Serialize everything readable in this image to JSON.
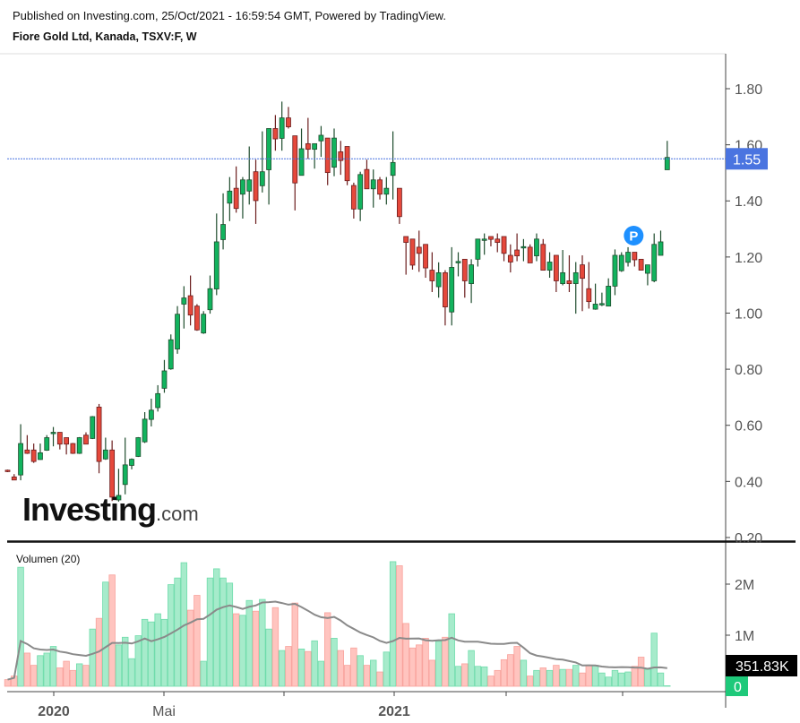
{
  "header": {
    "published": "Published on Investing.com, 25/Oct/2021 - 16:59:54 GMT, Powered by TradingView.",
    "instrument": "Fiore Gold Ltd, Kanada, TSXV:F, W"
  },
  "logo": {
    "brand": "Investing",
    "suffix": ".com"
  },
  "marker": {
    "label": "P",
    "color": "#1e90ff"
  },
  "colors": {
    "up": "#12b35e",
    "up_border": "#1f4d2e",
    "down": "#e5483b",
    "down_border": "#6b1d1d",
    "vol_up": "#a6ebcb",
    "vol_up_border": "#6fdcab",
    "vol_down": "#ffc4bf",
    "vol_down_border": "#f8a29c",
    "last_price": "#4a74e0",
    "vol_ma": "#8a8a8a"
  },
  "chart_data": [
    {
      "type": "candlestick",
      "title": "Fiore Gold Ltd, Kanada, TSXV:F, W",
      "ylim": [
        0.2,
        1.9
      ],
      "y_ticks": [
        "1.80",
        "1.60",
        "1.40",
        "1.20",
        "1.00",
        "0.80",
        "0.60",
        "0.40",
        "0.20"
      ],
      "y_tick_values": [
        1.8,
        1.6,
        1.4,
        1.2,
        1.0,
        0.8,
        0.6,
        0.4,
        0.2
      ],
      "x_ticks": [
        {
          "label": "2020",
          "bold": true
        },
        {
          "label": "Mai",
          "bold": false
        },
        {
          "label": "",
          "bold": false
        },
        {
          "label": "2021",
          "bold": true
        },
        {
          "label": "",
          "bold": false
        },
        {
          "label": "",
          "bold": false
        }
      ],
      "last_price": 1.55,
      "last_price_label": "1.55",
      "ohlc_columns": [
        "open",
        "high",
        "low",
        "close"
      ],
      "ohlc": [
        [
          0.44,
          0.442,
          0.433,
          0.435
        ],
        [
          0.416,
          0.426,
          0.405,
          0.405
        ],
        [
          0.423,
          0.604,
          0.404,
          0.535
        ],
        [
          0.512,
          0.565,
          0.498,
          0.5
        ],
        [
          0.512,
          0.535,
          0.466,
          0.471
        ],
        [
          0.478,
          0.535,
          0.477,
          0.502
        ],
        [
          0.511,
          0.565,
          0.509,
          0.556
        ],
        [
          0.573,
          0.594,
          0.525,
          0.575
        ],
        [
          0.575,
          0.575,
          0.514,
          0.533
        ],
        [
          0.556,
          0.556,
          0.496,
          0.533
        ],
        [
          0.535,
          0.537,
          0.498,
          0.5
        ],
        [
          0.5,
          0.558,
          0.498,
          0.556
        ],
        [
          0.565,
          0.575,
          0.533,
          0.533
        ],
        [
          0.553,
          0.633,
          0.551,
          0.631
        ],
        [
          0.665,
          0.676,
          0.429,
          0.471
        ],
        [
          0.48,
          0.556,
          0.477,
          0.512
        ],
        [
          0.512,
          0.546,
          0.33,
          0.344
        ],
        [
          0.334,
          0.445,
          0.328,
          0.35
        ],
        [
          0.389,
          0.556,
          0.354,
          0.459
        ],
        [
          0.457,
          0.482,
          0.443,
          0.479
        ],
        [
          0.489,
          0.558,
          0.487,
          0.556
        ],
        [
          0.541,
          0.647,
          0.537,
          0.622
        ],
        [
          0.621,
          0.695,
          0.596,
          0.654
        ],
        [
          0.663,
          0.743,
          0.649,
          0.713
        ],
        [
          0.732,
          0.833,
          0.716,
          0.794
        ],
        [
          0.801,
          0.924,
          0.798,
          0.905
        ],
        [
          0.872,
          1.025,
          0.855,
          0.996
        ],
        [
          1.032,
          1.096,
          0.945,
          1.054
        ],
        [
          1.062,
          1.134,
          0.956,
          0.993
        ],
        [
          1.025,
          1.032,
          0.937,
          0.94
        ],
        [
          0.929,
          1.007,
          0.926,
          0.996
        ],
        [
          1.012,
          1.134,
          0.998,
          1.087
        ],
        [
          1.086,
          1.355,
          1.064,
          1.254
        ],
        [
          1.262,
          1.427,
          1.227,
          1.316
        ],
        [
          1.392,
          1.485,
          1.328,
          1.435
        ],
        [
          1.445,
          1.523,
          1.358,
          1.373
        ],
        [
          1.424,
          1.485,
          1.337,
          1.475
        ],
        [
          1.435,
          1.594,
          1.387,
          1.475
        ],
        [
          1.504,
          1.547,
          1.318,
          1.401
        ],
        [
          1.454,
          1.648,
          1.43,
          1.504
        ],
        [
          1.511,
          1.658,
          1.387,
          1.658
        ],
        [
          1.658,
          1.706,
          1.579,
          1.621
        ],
        [
          1.623,
          1.754,
          1.579,
          1.696
        ],
        [
          1.696,
          1.735,
          1.658,
          1.664
        ],
        [
          1.632,
          1.632,
          1.366,
          1.464
        ],
        [
          1.491,
          1.658,
          1.491,
          1.586
        ],
        [
          1.604,
          1.696,
          1.55,
          1.584
        ],
        [
          1.584,
          1.604,
          1.515,
          1.604
        ],
        [
          1.614,
          1.667,
          1.557,
          1.634
        ],
        [
          1.624,
          1.624,
          1.456,
          1.501
        ],
        [
          1.52,
          1.658,
          1.488,
          1.624
        ],
        [
          1.575,
          1.614,
          1.493,
          1.544
        ],
        [
          1.594,
          1.594,
          1.456,
          1.472
        ],
        [
          1.455,
          1.465,
          1.337,
          1.371
        ],
        [
          1.371,
          1.504,
          1.328,
          1.494
        ],
        [
          1.512,
          1.547,
          1.443,
          1.443
        ],
        [
          1.443,
          1.512,
          1.376,
          1.475
        ],
        [
          1.475,
          1.485,
          1.405,
          1.424
        ],
        [
          1.424,
          1.485,
          1.387,
          1.445
        ],
        [
          1.491,
          1.648,
          1.405,
          1.537
        ],
        [
          1.445,
          1.445,
          1.318,
          1.344
        ],
        [
          1.273,
          1.273,
          1.137,
          1.252
        ],
        [
          1.264,
          1.264,
          1.155,
          1.171
        ],
        [
          1.235,
          1.294,
          1.147,
          1.213
        ],
        [
          1.245,
          1.245,
          1.126,
          1.161
        ],
        [
          1.153,
          1.217,
          1.075,
          1.115
        ],
        [
          1.094,
          1.181,
          1.055,
          1.144
        ],
        [
          1.144,
          1.153,
          0.956,
          1.022
        ],
        [
          1.004,
          1.235,
          0.956,
          1.163
        ],
        [
          1.182,
          1.217,
          1.131,
          1.184
        ],
        [
          1.192,
          1.192,
          1.055,
          1.115
        ],
        [
          1.105,
          1.192,
          1.036,
          1.172
        ],
        [
          1.192,
          1.264,
          1.166,
          1.264
        ],
        [
          1.263,
          1.284,
          1.208,
          1.264
        ],
        [
          1.273,
          1.273,
          1.238,
          1.263
        ],
        [
          1.264,
          1.284,
          1.217,
          1.252
        ],
        [
          1.273,
          1.273,
          1.185,
          1.213
        ],
        [
          1.206,
          1.245,
          1.145,
          1.182
        ],
        [
          1.225,
          1.284,
          1.185,
          1.204
        ],
        [
          1.235,
          1.264,
          1.185,
          1.237
        ],
        [
          1.235,
          1.245,
          1.179,
          1.179
        ],
        [
          1.204,
          1.284,
          1.185,
          1.264
        ],
        [
          1.245,
          1.264,
          1.153,
          1.153
        ],
        [
          1.153,
          1.217,
          1.126,
          1.182
        ],
        [
          1.206,
          1.206,
          1.075,
          1.115
        ],
        [
          1.105,
          1.225,
          1.099,
          1.144
        ],
        [
          1.115,
          1.206,
          1.075,
          1.105
        ],
        [
          1.105,
          1.182,
          0.998,
          1.144
        ],
        [
          1.172,
          1.206,
          1.007,
          1.124
        ],
        [
          1.087,
          1.182,
          1.016,
          1.041
        ],
        [
          1.014,
          1.105,
          1.012,
          1.032
        ],
        [
          1.032,
          1.073,
          1.025,
          1.034
        ],
        [
          1.025,
          1.124,
          1.025,
          1.096
        ],
        [
          1.096,
          1.227,
          1.064,
          1.206
        ],
        [
          1.151,
          1.217,
          1.147,
          1.206
        ],
        [
          1.181,
          1.235,
          1.166,
          1.217
        ],
        [
          1.217,
          1.217,
          1.166,
          1.19
        ],
        [
          1.192,
          1.192,
          1.153,
          1.153
        ],
        [
          1.142,
          1.172,
          1.099,
          1.172
        ],
        [
          1.115,
          1.284,
          1.11,
          1.245
        ],
        [
          1.206,
          1.294,
          1.206,
          1.254
        ],
        [
          1.511,
          1.614,
          1.511,
          1.555
        ]
      ],
      "marker_index": 96
    },
    {
      "type": "bar",
      "title": "Volumen (20)",
      "ylim": [
        0,
        2.6
      ],
      "unit": "M",
      "y_ticks": [
        "2M",
        "1M",
        "0"
      ],
      "y_tick_values": [
        2,
        1,
        0
      ],
      "ma_period": 20,
      "ma_last_label": "351.83K",
      "volumes_m": [
        0.13,
        0.2,
        2.33,
        0.65,
        0.41,
        0.6,
        0.65,
        0.78,
        0.36,
        0.49,
        0.31,
        0.44,
        0.41,
        1.12,
        1.33,
        2.04,
        2.18,
        0.81,
        0.96,
        0.54,
        0.99,
        1.31,
        1.26,
        1.42,
        1.31,
        1.99,
        2.12,
        2.42,
        1.49,
        1.78,
        0.49,
        2.12,
        2.3,
        2.12,
        2.02,
        1.42,
        1.39,
        1.68,
        1.47,
        1.7,
        1.12,
        1.54,
        0.7,
        0.78,
        1.63,
        0.73,
        0.68,
        0.89,
        0.49,
        1.44,
        0.94,
        0.7,
        0.41,
        0.75,
        0.6,
        0.41,
        0.51,
        0.28,
        0.67,
        2.44,
        2.36,
        1.23,
        0.75,
        0.81,
        0.94,
        0.51,
        0.88,
        0.96,
        1.42,
        0.39,
        0.44,
        0.7,
        0.39,
        0.38,
        0.2,
        0.31,
        0.52,
        0.62,
        0.78,
        0.51,
        0.2,
        0.31,
        0.36,
        0.31,
        0.41,
        0.33,
        0.33,
        0.41,
        0.26,
        0.41,
        0.41,
        0.26,
        0.18,
        0.31,
        0.26,
        0.28,
        0.39,
        0.57,
        0.33,
        1.04,
        0.26,
        0.01
      ]
    }
  ]
}
